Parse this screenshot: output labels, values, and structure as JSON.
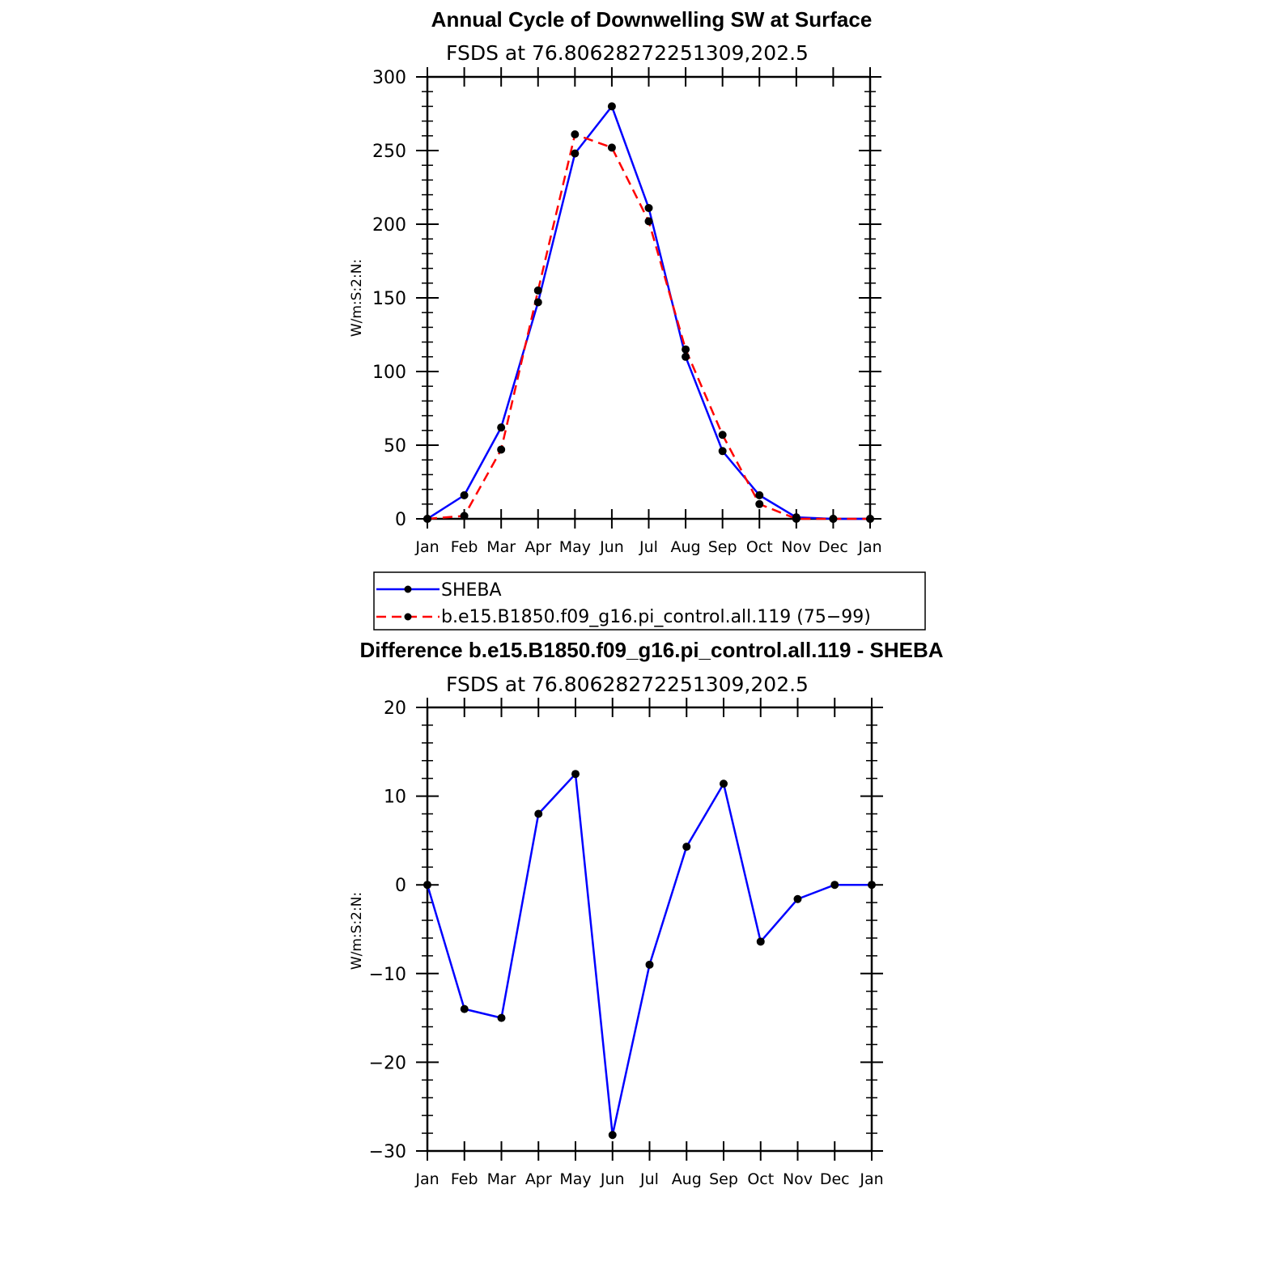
{
  "chart_data": [
    {
      "type": "line",
      "title": "Annual Cycle of Downwelling SW at Surface",
      "subtitle": "FSDS at 76.80628272251309,202.5",
      "xlabel": "",
      "ylabel": "W/m:S:2:N:",
      "categories": [
        "Jan",
        "Feb",
        "Mar",
        "Apr",
        "May",
        "Jun",
        "Jul",
        "Aug",
        "Sep",
        "Oct",
        "Nov",
        "Dec",
        "Jan"
      ],
      "ylim": [
        0,
        300
      ],
      "yticks": [
        0,
        50,
        100,
        150,
        200,
        250,
        300
      ],
      "ytick_labels": [
        "0",
        "50",
        "100",
        "150",
        "200",
        "250",
        "300"
      ],
      "series": [
        {
          "name": "SHEBA",
          "color": "#0000ff",
          "style": "solid",
          "values": [
            0,
            16,
            62,
            147,
            248,
            280,
            211,
            110,
            46,
            16,
            1,
            0,
            0
          ]
        },
        {
          "name": "b.e15.B1850.f09_g16.pi_control.all.119 (75−99)",
          "color": "#ff0000",
          "style": "dashed",
          "values": [
            0,
            2,
            47,
            155,
            261,
            252,
            202,
            115,
            57,
            10,
            0,
            0,
            0
          ]
        }
      ],
      "legend": "below"
    },
    {
      "type": "line",
      "title": "Difference b.e15.B1850.f09_g16.pi_control.all.119 - SHEBA",
      "subtitle": "FSDS at 76.80628272251309,202.5",
      "xlabel": "",
      "ylabel": "W/m:S:2:N:",
      "categories": [
        "Jan",
        "Feb",
        "Mar",
        "Apr",
        "May",
        "Jun",
        "Jul",
        "Aug",
        "Sep",
        "Oct",
        "Nov",
        "Dec",
        "Jan"
      ],
      "ylim": [
        -30,
        20
      ],
      "yticks": [
        -30,
        -20,
        -10,
        0,
        10,
        20
      ],
      "ytick_labels": [
        "−30",
        "−20",
        "−10",
        "0",
        "10",
        "20"
      ],
      "series": [
        {
          "name": "Difference",
          "color": "#0000ff",
          "style": "solid",
          "values": [
            0,
            -14,
            -15,
            8,
            12.5,
            -28.2,
            -9,
            4.3,
            11.4,
            -6.4,
            -1.6,
            0,
            0
          ]
        }
      ]
    }
  ]
}
